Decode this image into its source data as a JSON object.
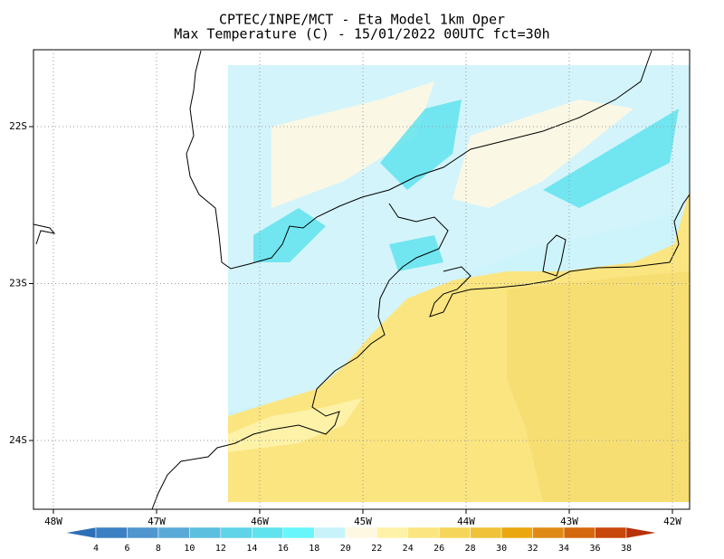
{
  "header": {
    "title": "CPTEC/INPE/MCT -  Eta Model 1km Oper",
    "subtitle": "Max Temperature (C) - 15/01/2022 00UTC fct=30h"
  },
  "map": {
    "lon_labels": [
      "48W",
      "47W",
      "46W",
      "45W",
      "44W",
      "43W",
      "42W"
    ],
    "lat_labels": [
      "22S",
      "23S",
      "24S"
    ]
  },
  "colorbar": {
    "levels": [
      4,
      6,
      8,
      10,
      12,
      14,
      16,
      18,
      20,
      22,
      24,
      26,
      28,
      30,
      32,
      34,
      36,
      38
    ],
    "colors": [
      "#2d6fb5",
      "#3b80c2",
      "#4f96cf",
      "#5aaad8",
      "#5bbfe0",
      "#5fd3e8",
      "#5fe3ee",
      "#66f6fb",
      "#c8f3fb",
      "#fef8e2",
      "#fdf2a8",
      "#fbe580",
      "#f5d55a",
      "#efc23a",
      "#eba70f",
      "#e08a16",
      "#d5680d",
      "#c9470a",
      "#b83108"
    ]
  }
}
